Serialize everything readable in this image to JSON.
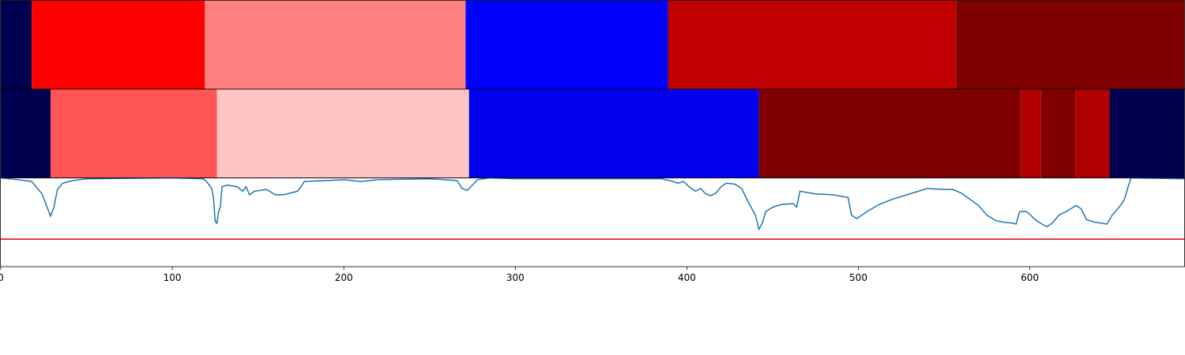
{
  "chart_data": [
    {
      "type": "segments",
      "xlim": [
        0,
        690
      ],
      "breaks": [
        0,
        18,
        119,
        271,
        389,
        557,
        690
      ],
      "colors": [
        "#000050",
        "#ff0000",
        "#ff8080",
        "#0000ff",
        "#c00000",
        "#800000"
      ]
    },
    {
      "type": "segments",
      "xlim": [
        0,
        690
      ],
      "breaks": [
        0,
        29,
        126,
        273,
        442,
        594.5,
        606.5,
        626.5,
        646.5,
        690
      ],
      "colors": [
        "#000050",
        "#ff5555",
        "#ffc4c4",
        "#0000ee",
        "#800000",
        "#b00000",
        "#800000",
        "#b00000",
        "#000050"
      ]
    },
    {
      "type": "line",
      "xlim": [
        0,
        690
      ],
      "ylim": [
        0,
        1
      ],
      "xticks": [
        0,
        100,
        200,
        300,
        400,
        500,
        600
      ],
      "threshold": 0.31,
      "threshold_color": "#e00000",
      "series": [
        {
          "color": "#1f77b4",
          "x": [
            0,
            10,
            18,
            24,
            27,
            29,
            31,
            33,
            36,
            42,
            50,
            100,
            118,
            120,
            123,
            124,
            125,
            126,
            127,
            128,
            129,
            132,
            138,
            141,
            143,
            145,
            148,
            155,
            160,
            165,
            169,
            173,
            175,
            177,
            190,
            200,
            210,
            220,
            250,
            266,
            269,
            272,
            275,
            278,
            285,
            300,
            380,
            385,
            390,
            395,
            398,
            402,
            405,
            408,
            411,
            414,
            417,
            420,
            423,
            428,
            432,
            435,
            438,
            440,
            442,
            444,
            446,
            450,
            455,
            462,
            464,
            466,
            475,
            485,
            494,
            496,
            499,
            505,
            512,
            520,
            530,
            540,
            550,
            555,
            560,
            565,
            570,
            575,
            580,
            585,
            590,
            592,
            594,
            598,
            600,
            603,
            607,
            610,
            613,
            617,
            622,
            627,
            630,
            633,
            638,
            645,
            648,
            652,
            655,
            657,
            659,
            690
          ],
          "values": [
            1.0,
            0.98,
            0.96,
            0.82,
            0.67,
            0.57,
            0.67,
            0.87,
            0.94,
            0.97,
            0.99,
            1.0,
            0.99,
            0.96,
            0.88,
            0.78,
            0.51,
            0.49,
            0.62,
            0.67,
            0.9,
            0.92,
            0.9,
            0.85,
            0.9,
            0.81,
            0.85,
            0.87,
            0.81,
            0.81,
            0.83,
            0.85,
            0.9,
            0.96,
            0.97,
            0.98,
            0.96,
            0.98,
            0.99,
            0.97,
            0.88,
            0.86,
            0.92,
            0.98,
            1.0,
            0.99,
            0.99,
            0.99,
            0.97,
            0.94,
            0.96,
            0.89,
            0.85,
            0.88,
            0.82,
            0.8,
            0.83,
            0.9,
            0.94,
            0.93,
            0.88,
            0.76,
            0.65,
            0.58,
            0.42,
            0.49,
            0.62,
            0.67,
            0.7,
            0.71,
            0.67,
            0.85,
            0.82,
            0.81,
            0.78,
            0.58,
            0.54,
            0.62,
            0.7,
            0.76,
            0.82,
            0.88,
            0.87,
            0.87,
            0.83,
            0.76,
            0.69,
            0.58,
            0.52,
            0.5,
            0.49,
            0.48,
            0.62,
            0.62,
            0.59,
            0.53,
            0.48,
            0.45,
            0.49,
            0.58,
            0.63,
            0.69,
            0.65,
            0.53,
            0.5,
            0.48,
            0.58,
            0.67,
            0.75,
            0.88,
            1.0,
            0.99
          ]
        }
      ]
    }
  ]
}
